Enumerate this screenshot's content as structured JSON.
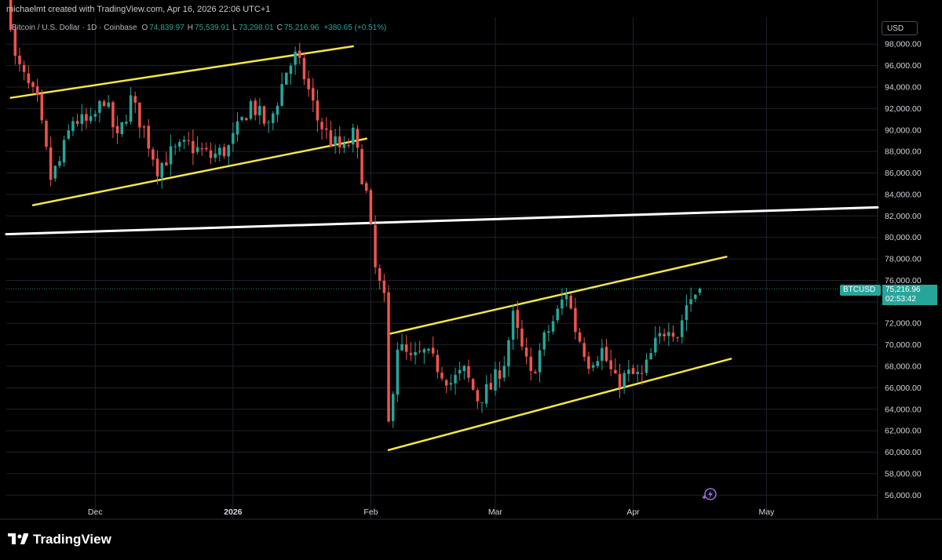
{
  "header": {
    "credit": "michaelmt created with TradingView.com, Apr 16, 2026 22:06 UTC+1",
    "symbol_desc": "Bitcoin / U.S. Dollar · 1D · Coinbase",
    "open_label": "O",
    "open": "74,839.97",
    "high_label": "H",
    "high": "75,539.91",
    "low_label": "L",
    "low": "73,298.01",
    "close_label": "C",
    "close": "75,216.96",
    "change": "+380.65 (+0.51%)"
  },
  "currency": "USD",
  "price_tag": {
    "symbol": "BTCUSD",
    "price": "75,216.96",
    "countdown": "02:53:42"
  },
  "brand": "TradingView",
  "colors": {
    "up": "#26a69a",
    "down": "#ef5350",
    "channel": "#f5e642",
    "support": "#ffffff",
    "grid": "#1e222d"
  },
  "icons": [
    "tradingview-logo-icon",
    "bolt-badge-icon"
  ],
  "chart_data": {
    "type": "candlestick",
    "y_axis": {
      "ticks": [
        "56,000.00",
        "58,000.00",
        "60,000.00",
        "62,000.00",
        "64,000.00",
        "66,000.00",
        "68,000.00",
        "70,000.00",
        "72,000.00",
        "74,000.00",
        "76,000.00",
        "78,000.00",
        "80,000.00",
        "82,000.00",
        "84,000.00",
        "86,000.00",
        "88,000.00",
        "90,000.00",
        "92,000.00",
        "94,000.00",
        "96,000.00",
        "98,000.00"
      ],
      "range": [
        55000,
        100500
      ]
    },
    "x_axis": {
      "ticks": [
        {
          "label": "Dec",
          "date": "2025-12-01",
          "bold": false
        },
        {
          "label": "2026",
          "date": "2026-01-01",
          "bold": true
        },
        {
          "label": "Feb",
          "date": "2026-02-01",
          "bold": false
        },
        {
          "label": "Mar",
          "date": "2026-03-01",
          "bold": false
        },
        {
          "label": "Apr",
          "date": "2026-04-01",
          "bold": false
        },
        {
          "label": "May",
          "date": "2026-05-01",
          "bold": false
        }
      ],
      "range": [
        "2025-11-11",
        "2026-05-26"
      ]
    },
    "last_price": 75216.96,
    "path": [
      [
        "2025-11-11",
        104000
      ],
      [
        "2025-11-13",
        96500
      ],
      [
        "2025-11-16",
        94000
      ],
      [
        "2025-11-18",
        92500
      ],
      [
        "2025-11-21",
        85500
      ],
      [
        "2025-11-23",
        87000
      ],
      [
        "2025-11-26",
        91000
      ],
      [
        "2025-11-30",
        90500
      ],
      [
        "2025-12-03",
        93000
      ],
      [
        "2025-12-06",
        89000
      ],
      [
        "2025-12-09",
        92800
      ],
      [
        "2025-12-12",
        90000
      ],
      [
        "2025-12-15",
        86500
      ],
      [
        "2025-12-18",
        87800
      ],
      [
        "2025-12-22",
        88600
      ],
      [
        "2025-12-27",
        87500
      ],
      [
        "2025-12-31",
        88300
      ],
      [
        "2026-01-05",
        92500
      ],
      [
        "2026-01-09",
        90200
      ],
      [
        "2026-01-13",
        95500
      ],
      [
        "2026-01-15",
        96800
      ],
      [
        "2026-01-17",
        95000
      ],
      [
        "2026-01-20",
        91000
      ],
      [
        "2026-01-23",
        89000
      ],
      [
        "2026-01-26",
        88000
      ],
      [
        "2026-01-28",
        89500
      ],
      [
        "2026-01-31",
        84000
      ],
      [
        "2026-02-02",
        77000
      ],
      [
        "2026-02-04",
        74000
      ],
      [
        "2026-02-05",
        62500
      ],
      [
        "2026-02-07",
        70000
      ],
      [
        "2026-02-10",
        68500
      ],
      [
        "2026-02-13",
        69200
      ],
      [
        "2026-02-16",
        68000
      ],
      [
        "2026-02-19",
        66500
      ],
      [
        "2026-02-22",
        67500
      ],
      [
        "2026-02-25",
        65000
      ],
      [
        "2026-02-28",
        66000
      ],
      [
        "2026-03-03",
        68500
      ],
      [
        "2026-03-05",
        72500
      ],
      [
        "2026-03-07",
        69500
      ],
      [
        "2026-03-09",
        67000
      ],
      [
        "2026-03-12",
        70500
      ],
      [
        "2026-03-15",
        73000
      ],
      [
        "2026-03-17",
        75000
      ],
      [
        "2026-03-19",
        71500
      ],
      [
        "2026-03-22",
        68500
      ],
      [
        "2026-03-25",
        69500
      ],
      [
        "2026-03-28",
        66500
      ],
      [
        "2026-03-31",
        67200
      ],
      [
        "2026-04-03",
        67000
      ],
      [
        "2026-04-06",
        70000
      ],
      [
        "2026-04-09",
        72000
      ],
      [
        "2026-04-11",
        71000
      ],
      [
        "2026-04-13",
        73800
      ],
      [
        "2026-04-15",
        74840
      ],
      [
        "2026-04-16",
        75217
      ]
    ],
    "trendlines": [
      {
        "name": "",
        "color": "#f5e642",
        "from": [
          "2025-11-12",
          93000
        ],
        "to": [
          "2026-01-28",
          97800
        ]
      },
      {
        "name": "",
        "color": "#f5e642",
        "from": [
          "2025-11-17",
          83000
        ],
        "to": [
          "2026-01-31",
          89200
        ]
      },
      {
        "name": "",
        "color": "#ffffff",
        "from": [
          "2025-11-11",
          80300
        ],
        "to": [
          "2026-05-26",
          82800
        ]
      },
      {
        "name": "",
        "color": "#f5e642",
        "from": [
          "2026-02-05",
          71000
        ],
        "to": [
          "2026-04-22",
          78200
        ]
      },
      {
        "name": "",
        "color": "#f5e642",
        "from": [
          "2026-02-05",
          60200
        ],
        "to": [
          "2026-04-23",
          68700
        ]
      }
    ]
  }
}
